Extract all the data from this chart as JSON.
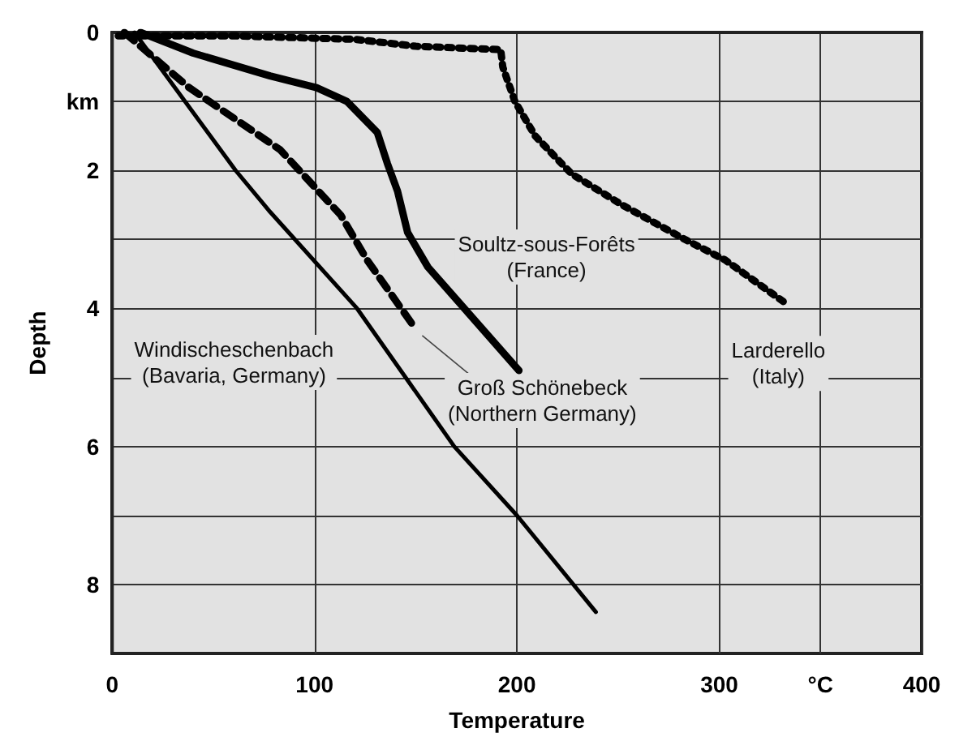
{
  "chart_data": {
    "type": "line",
    "xlabel": "Temperature",
    "ylabel": "Depth",
    "xlim": [
      0,
      400
    ],
    "ylim": [
      9,
      0
    ],
    "xticks": [
      0,
      100,
      200,
      300,
      {
        "value": 350,
        "label": "°C"
      },
      400
    ],
    "yticks": [
      0,
      {
        "value": 1,
        "label": "km"
      },
      2,
      {
        "value": 3,
        "label": null
      },
      4,
      {
        "value": 5,
        "label": null
      },
      6,
      {
        "value": 7,
        "label": null
      },
      8
    ],
    "grid": true,
    "marker": "none",
    "series": [
      {
        "name": "Windischeschenbach\n(Bavaria, Germany)",
        "color": "#000000",
        "line_style": "solid",
        "x": [
          11,
          61,
          78,
          121,
          169,
          200,
          239
        ],
        "values": [
          0,
          2,
          2.6,
          4,
          6,
          7,
          8.4
        ]
      },
      {
        "name": "Groß Schönebeck\n(Northern Germany)",
        "color": "#000000",
        "line_style": "dashed",
        "x": [
          6,
          38,
          83,
          113,
          126,
          150
        ],
        "values": [
          0,
          0.8,
          1.7,
          2.65,
          3.3,
          4.3
        ]
      },
      {
        "name": "Soultz-sous-Forêts\n(France)",
        "color": "#000000",
        "line_style": "solid",
        "x": [
          14,
          40,
          78,
          101,
          116,
          131,
          136,
          141,
          146,
          156,
          201
        ],
        "values": [
          0,
          0.3,
          0.63,
          0.8,
          1.0,
          1.45,
          1.9,
          2.3,
          2.9,
          3.4,
          4.9
        ]
      },
      {
        "name": "Larderello\n(Italy)",
        "color": "#000000",
        "line_style": "dotted",
        "x": [
          3,
          60,
          120,
          150,
          192,
          193,
          199,
          209,
          227,
          252,
          283,
          303,
          334
        ],
        "values": [
          0.05,
          0.05,
          0.1,
          0.2,
          0.25,
          0.5,
          1.0,
          1.5,
          2.05,
          2.5,
          3.0,
          3.3,
          3.95
        ]
      }
    ]
  }
}
